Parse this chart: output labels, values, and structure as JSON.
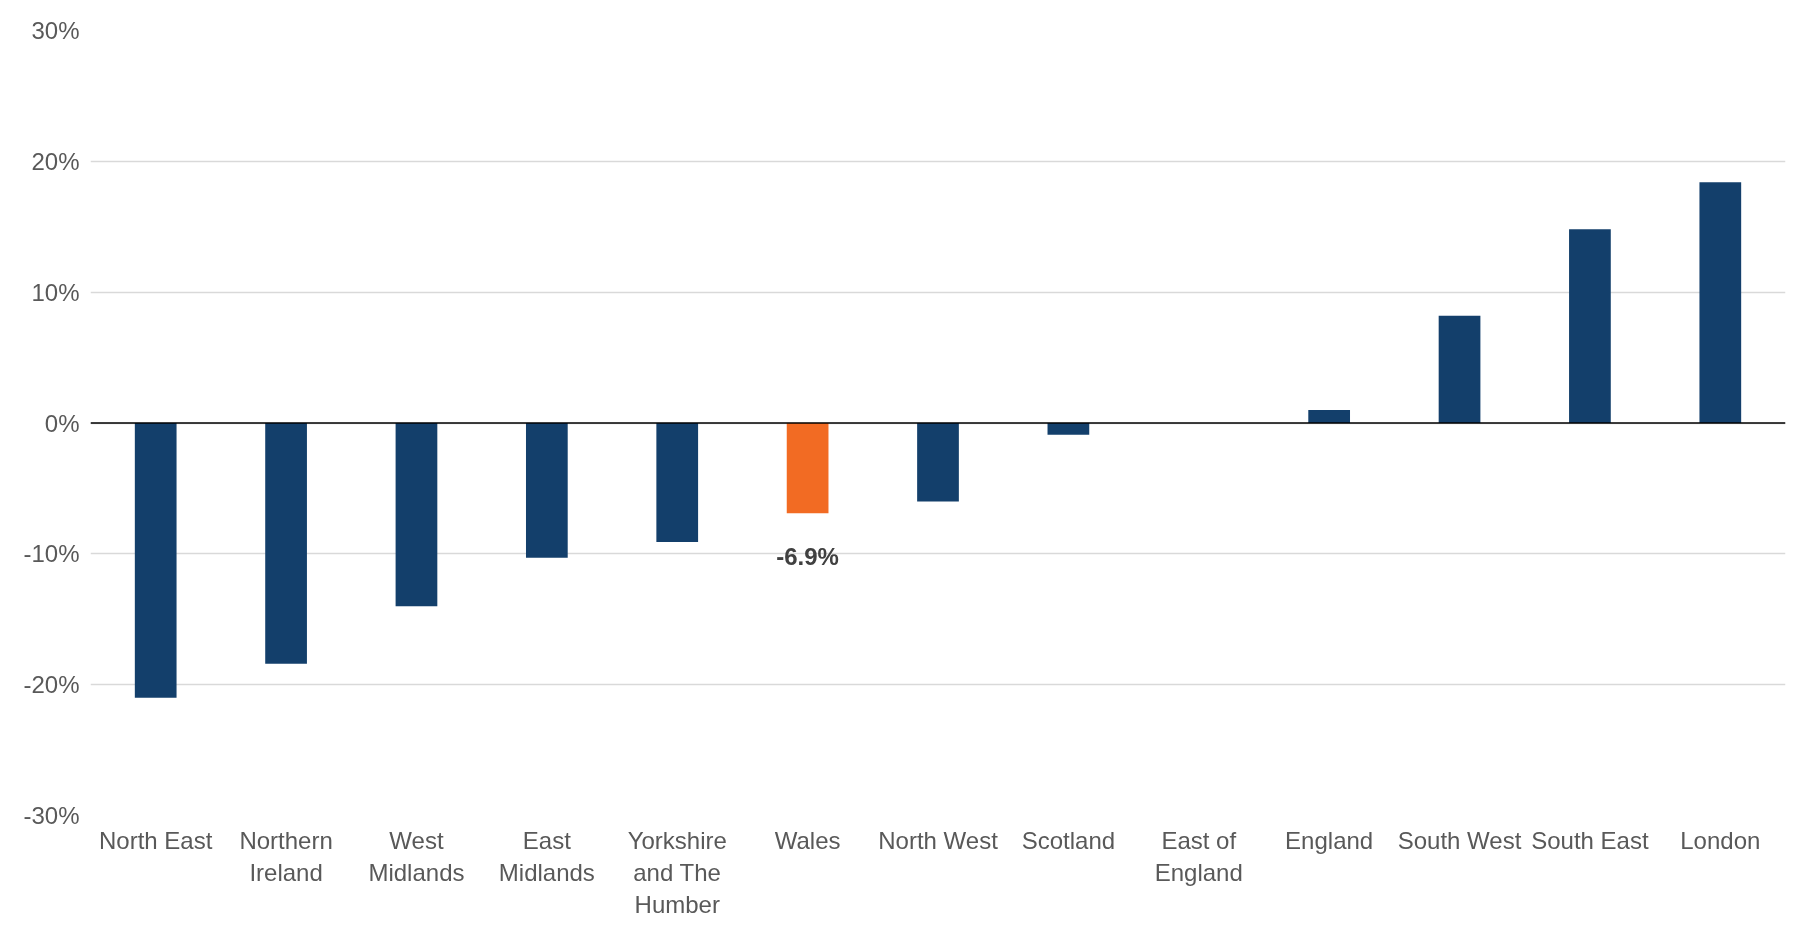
{
  "chart_data": {
    "type": "bar",
    "categories": [
      "North East",
      "Northern Ireland",
      "West Midlands",
      "East Midlands",
      "Yorkshire and The Humber",
      "Wales",
      "North West",
      "Scotland",
      "East of England",
      "England",
      "South West",
      "South East",
      "London"
    ],
    "values": [
      -21.0,
      -18.4,
      -14.0,
      -10.3,
      -9.1,
      -6.9,
      -6.0,
      -0.9,
      0,
      1.0,
      8.2,
      14.8,
      18.4
    ],
    "colors": [
      "#133f6b",
      "#133f6b",
      "#133f6b",
      "#133f6b",
      "#133f6b",
      "#f26b23",
      "#133f6b",
      "#133f6b",
      "#133f6b",
      "#133f6b",
      "#133f6b",
      "#133f6b",
      "#133f6b"
    ],
    "value_labels": [
      null,
      null,
      null,
      null,
      null,
      "-6.9%",
      null,
      null,
      null,
      null,
      null,
      null,
      null
    ],
    "ylim": [
      -30,
      30
    ],
    "yticks": [
      {
        "value": -30,
        "label": "-30%"
      },
      {
        "value": -20,
        "label": "-20%"
      },
      {
        "value": -10,
        "label": "-10%"
      },
      {
        "value": 0,
        "label": "0%"
      },
      {
        "value": 10,
        "label": "10%"
      },
      {
        "value": 20,
        "label": "20%"
      },
      {
        "value": 30,
        "label": "30%"
      }
    ],
    "grid": "y"
  }
}
